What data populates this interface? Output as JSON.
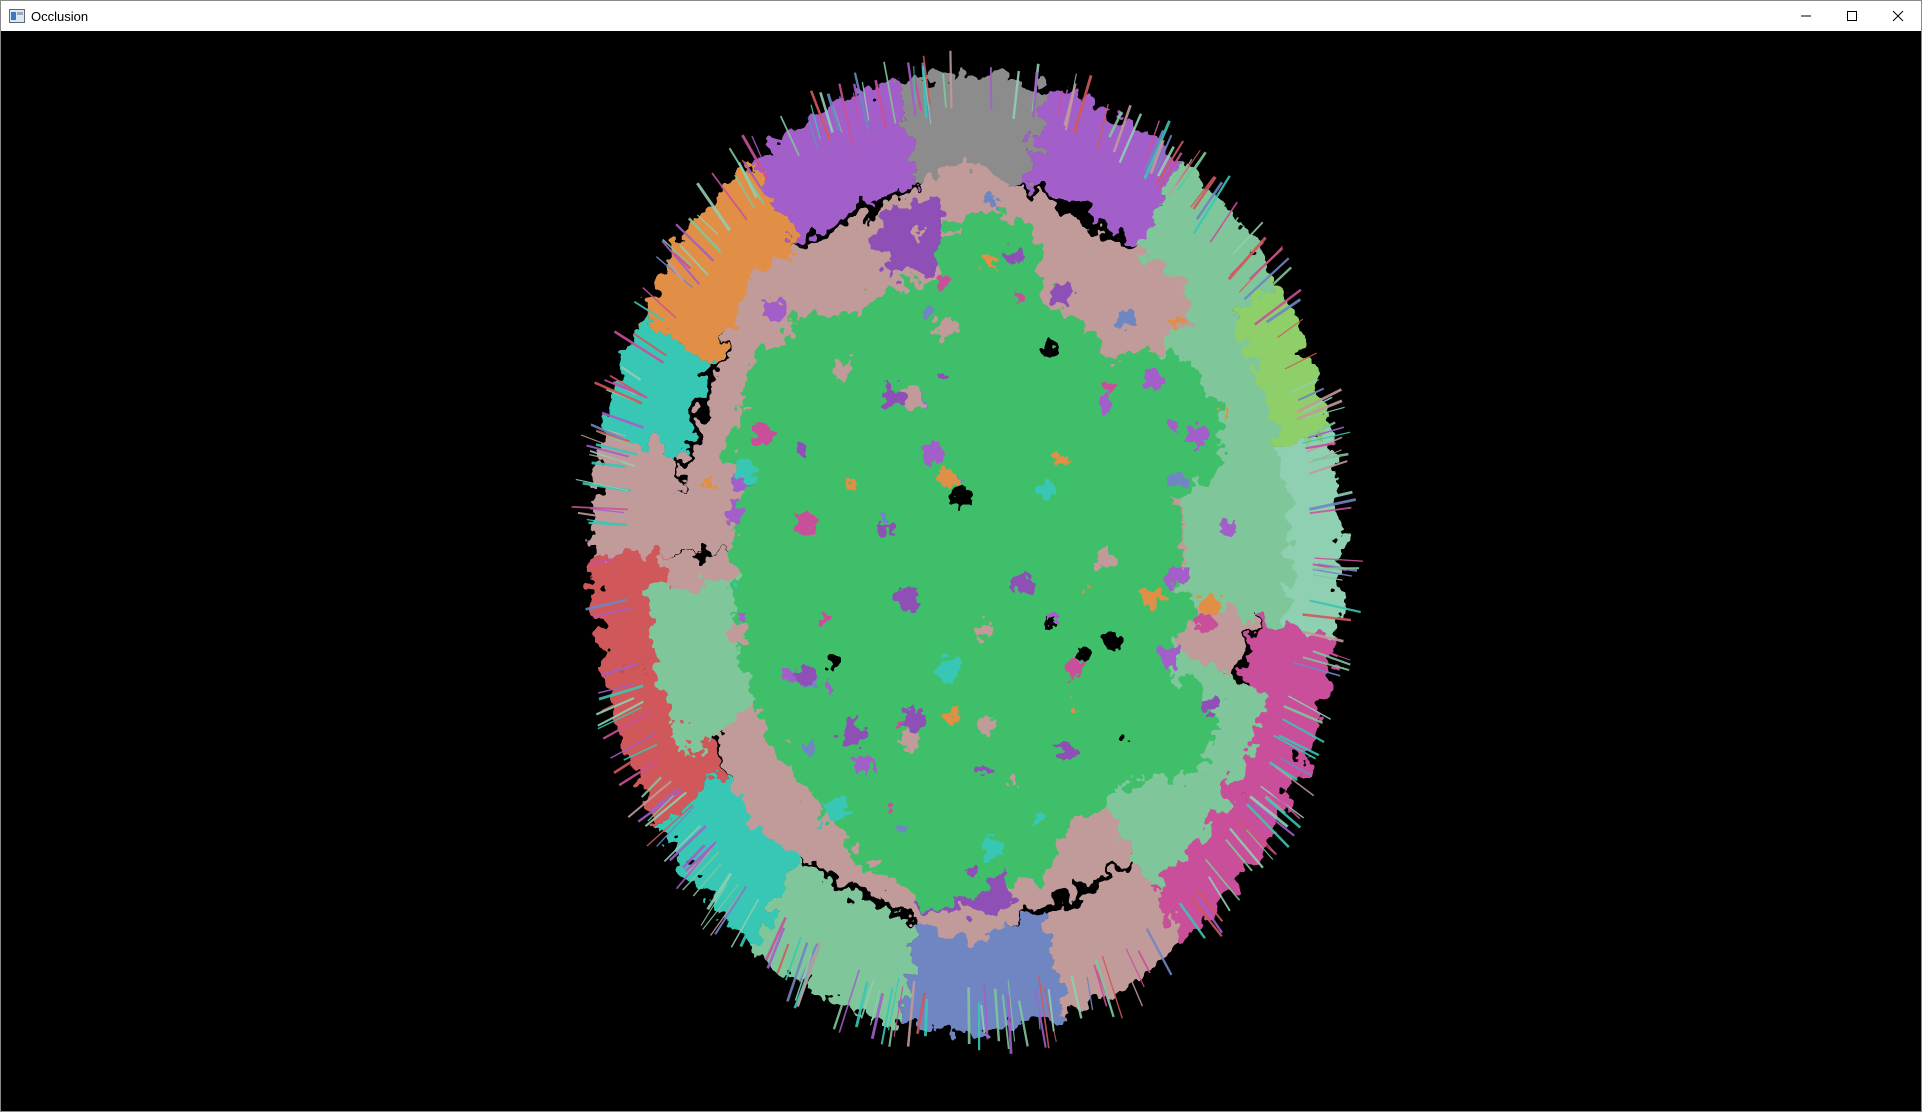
{
  "window": {
    "title": "Occlusion",
    "icons": {
      "app": "app-window-icon",
      "minimize": "minimize-icon",
      "maximize": "maximize-icon",
      "close": "close-icon"
    }
  },
  "scene": {
    "background": "#000000",
    "palette": {
      "center_green": "#3fbf6a",
      "pink": "#c19a9a",
      "purple": "#a35fc9",
      "orange": "#e18f46",
      "gray": "#8c8c8c",
      "magenta": "#c9509a",
      "sage": "#7fc79a",
      "lime": "#8fcf6a",
      "mint": "#8fcfb2",
      "red": "#d0585a",
      "teal": "#38c7b4",
      "blue": "#6f86c2",
      "violet": "#8e4fb6"
    }
  }
}
